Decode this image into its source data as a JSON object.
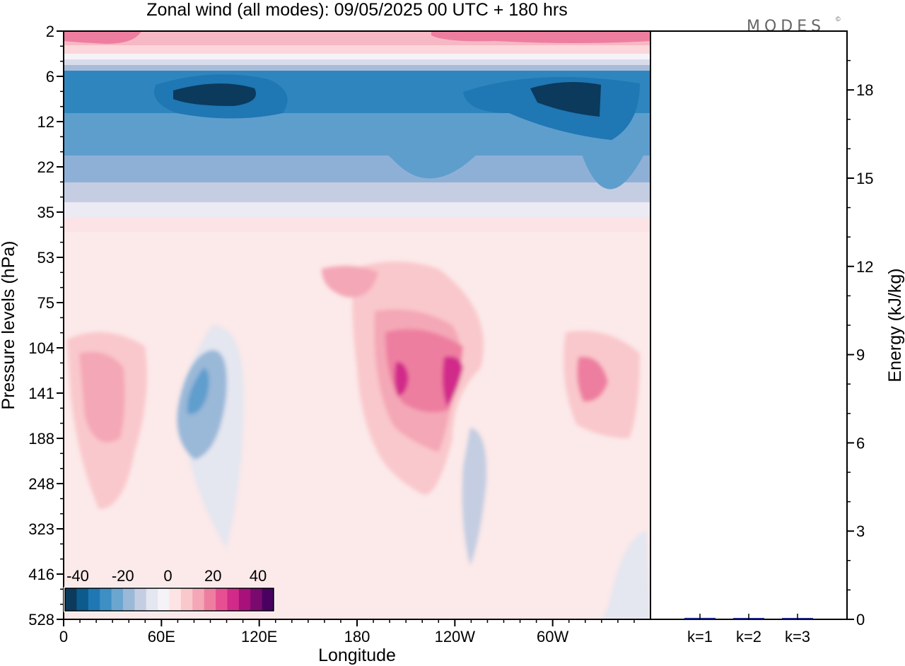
{
  "chart_data": {
    "type": "heatmap",
    "title": "Zonal wind (all modes):  09/05/2025  00 UTC  + 180 hrs",
    "logo": "MODES",
    "logo_mark": "©",
    "xlabel": "Longitude",
    "ylabel": "Pressure levels (hPa)",
    "ylabel_right": "Energy (kJ/kg)",
    "x_ticks": [
      "0",
      "60E",
      "120E",
      "180",
      "120W",
      "60W"
    ],
    "x_range_deg": [
      0,
      360
    ],
    "y_ticks": [
      "2",
      "6",
      "12",
      "22",
      "35",
      "53",
      "75",
      "104",
      "141",
      "188",
      "248",
      "323",
      "416",
      "528"
    ],
    "y_scale": "log",
    "colorbar": {
      "tick_labels": [
        "-40",
        "-20",
        "0",
        "20",
        "40"
      ],
      "colors": [
        "#0b3a5c",
        "#0d5a8c",
        "#1f77b4",
        "#3d8fc4",
        "#6aa6d0",
        "#9ab8d8",
        "#c4cde2",
        "#e4e6f0",
        "#f5f3f8",
        "#fde3e3",
        "#f9c8cc",
        "#f4a7b6",
        "#ee7ea0",
        "#e84f92",
        "#d22a8a",
        "#a8107a",
        "#7a0a6e",
        "#4a0060"
      ]
    },
    "energy_axis": {
      "ticks": [
        "0",
        "3",
        "6",
        "9",
        "12",
        "15",
        "18"
      ],
      "range": [
        0,
        20
      ]
    },
    "energy_bars": [
      {
        "label": "k=1",
        "value": 0.05
      },
      {
        "label": "k=2",
        "value": 0.03
      },
      {
        "label": "k=3",
        "value": 0.02
      }
    ],
    "wind_regions": [
      {
        "name": "upper-easterly-jet-core-west",
        "lon": [
          60,
          120
        ],
        "p": [
          7,
          11
        ],
        "u": -35
      },
      {
        "name": "upper-easterly-jet-core-east",
        "lon": [
          295,
          340
        ],
        "p": [
          7,
          13
        ],
        "u": -35
      },
      {
        "name": "upper-easterly-band",
        "lon": [
          0,
          360
        ],
        "p": [
          6,
          22
        ],
        "u": -25
      },
      {
        "name": "top-westerly-band",
        "lon": [
          0,
          360
        ],
        "p": [
          2,
          4
        ],
        "u": 10
      },
      {
        "name": "easterly-tongue-65E",
        "lon": [
          62,
          95
        ],
        "p": [
          104,
          320
        ],
        "u": -15
      },
      {
        "name": "westerly-max-120W",
        "lon": [
          190,
          255
        ],
        "p": [
          90,
          250
        ],
        "u": 25
      },
      {
        "name": "westerly-max-60W",
        "lon": [
          310,
          350
        ],
        "p": [
          110,
          200
        ],
        "u": 15
      },
      {
        "name": "westerly-20E",
        "lon": [
          8,
          45
        ],
        "p": [
          120,
          260
        ],
        "u": 8
      }
    ]
  }
}
